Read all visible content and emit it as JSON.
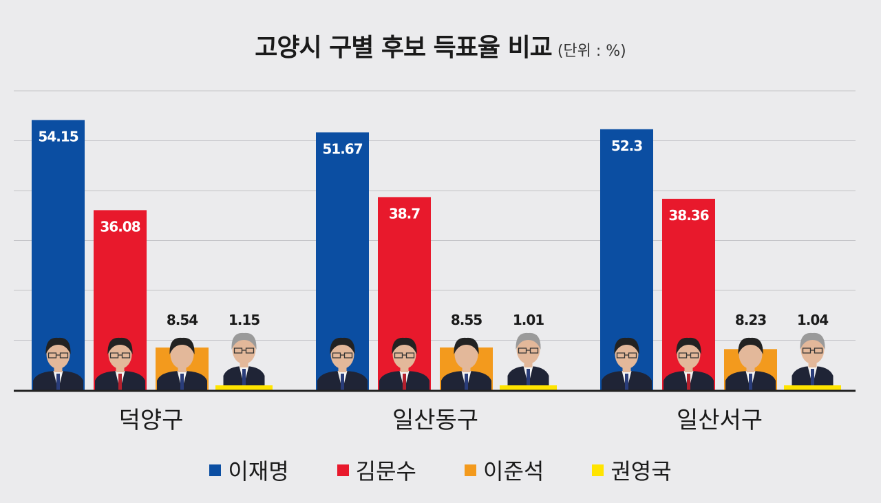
{
  "title": "고양시 구별 후보 득표율 비교",
  "unit": "(단위 : %)",
  "colors": {
    "이재명": "#0b4ea2",
    "김문수": "#e8192c",
    "이준석": "#f39a1d",
    "권영국": "#ffe400",
    "grid": "#c4c4c8",
    "axis": "#222222"
  },
  "chart_data": {
    "type": "bar",
    "title": "고양시 구별 후보 득표율 비교",
    "categories": [
      "덕양구",
      "일산동구",
      "일산서구"
    ],
    "series": [
      {
        "name": "이재명",
        "values": [
          54.15,
          51.67,
          52.3
        ]
      },
      {
        "name": "김문수",
        "values": [
          36.08,
          38.7,
          38.36
        ]
      },
      {
        "name": "이준석",
        "values": [
          8.54,
          8.55,
          8.23
        ]
      },
      {
        "name": "권영국",
        "values": [
          1.15,
          1.01,
          1.04
        ]
      }
    ],
    "ylim": [
      0,
      60
    ],
    "grid": true,
    "legend_position": "bottom",
    "value_labels": {
      "덕양구": [
        "54.15",
        "36.08",
        "8.54",
        "1.15"
      ],
      "일산동구": [
        "51.67",
        "38.7",
        "8.55",
        "1.01"
      ],
      "일산서구": [
        "52.3",
        "38.36",
        "8.23",
        "1.04"
      ]
    }
  },
  "legend": [
    "이재명",
    "김문수",
    "이준석",
    "권영국"
  ]
}
